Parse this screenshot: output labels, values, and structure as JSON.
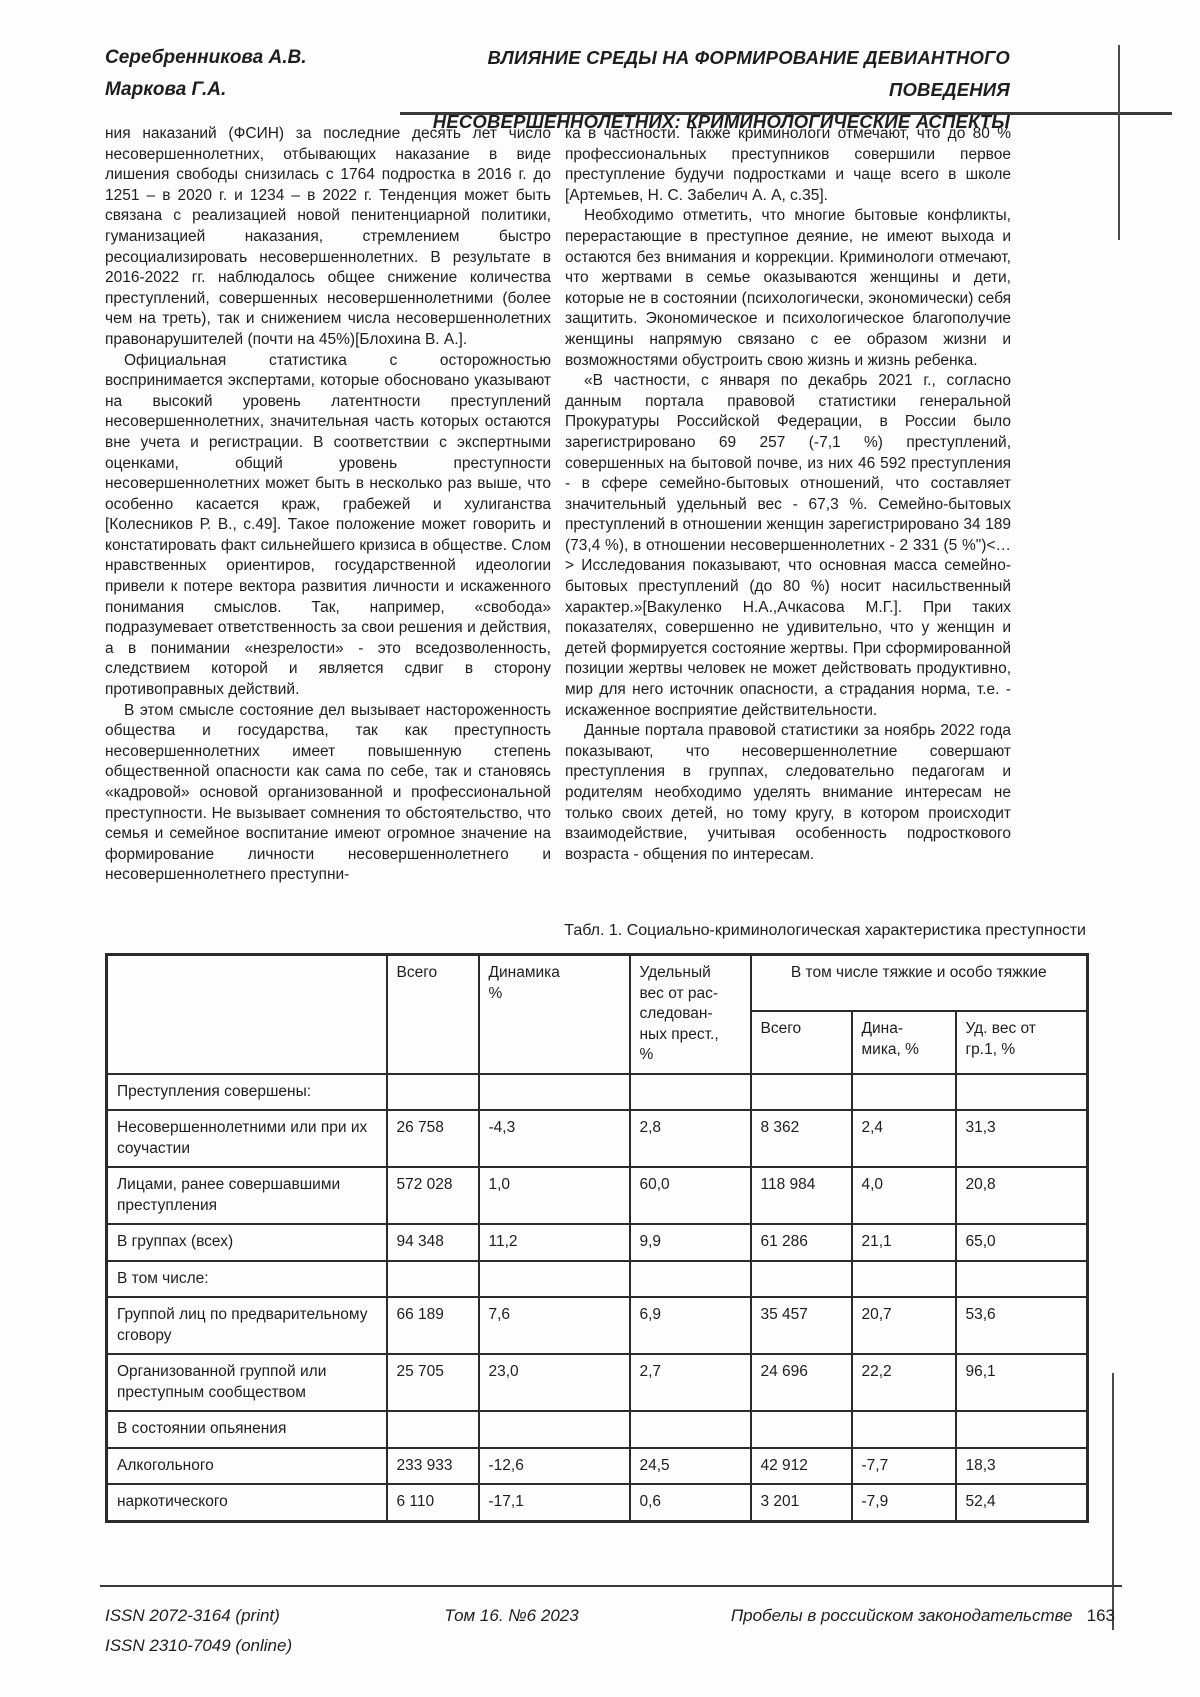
{
  "header": {
    "authors": [
      "Серебренникова А.В.",
      "Маркова Г.А."
    ],
    "title_line1": "ВЛИЯНИЕ СРЕДЫ НА ФОРМИРОВАНИЕ ДЕВИАНТНОГО ПОВЕДЕНИЯ",
    "title_line2": "НЕСОВЕРШЕННОЛЕТНИХ: КРИМИНОЛОГИЧЕСКИЕ АСПЕКТЫ"
  },
  "body": {
    "left_column": [
      {
        "text": "ния наказаний (ФСИН) за последние десять лет число несовершеннолетних, отбывающих наказание в виде лишения свободы снизилась с 1764 подростка в 2016 г. до 1251 – в 2020 г. и 1234 – в 2022 г. Тенденция может быть связана с реализацией новой пенитенциарной политики, гуманизацией наказания, стремлением быстро ресоциализировать несовершеннолетних. В результате в 2016-2022 гг. наблюдалось общее снижение количества преступлений, совершенных несовершеннолетними (более чем на треть), так и снижением числа несовершеннолетних правонарушителей (почти на 45%)[Блохина В. А.]."
      },
      {
        "text": "Официальная статистика с осторожностью воспринимается экспертами, которые обосновано указывают на высокий уровень латентности преступлений несовершеннолетних, значительная часть которых остаются вне учета и регистрации. В соответствии с экспертными оценками, общий уровень преступности несовершеннолетних может быть в несколько раз выше, что особенно касается краж, грабежей и хулиганства [Колесников Р. В., с.49]. Такое положение может говорить и констатировать факт сильнейшего кризиса в обществе. Слом нравственных ориентиров, государственной идеологии привели к потере вектора развития личности и искаженного понимания смыслов. Так, например, «свобода» подразумевает ответственность за свои решения и действия, а в понимании «незрелости» - это вседозволенность, следствием которой и является сдвиг в сторону противоправных действий."
      },
      {
        "text": "В этом смысле состояние дел вызывает настороженность общества и государства, так как преступность несовершеннолетних имеет повышенную степень общественной опасности как сама по себе, так и становясь «кадровой» основой организованной и профессиональной преступности. Не вызывает сомнения то обстоятельство, что семья и семейное воспитание имеют огромное значение на формирование личности несовершеннолетнего и несовершеннолетнего преступни-"
      }
    ],
    "right_column": [
      {
        "text": "ка в частности. Также криминологи отмечают, что до 80 % профессиональных преступников совершили первое преступление будучи подростками и чаще всего в школе [Артемьев, Н. С. Забелич А. А, с.35]."
      },
      {
        "text": "Необходимо отметить, что многие бытовые конфликты, перерастающие в преступное деяние, не имеют выхода и остаются без внимания и коррекции. Криминологи отмечают, что жертвами в семье оказываются женщины и дети, которые не в состоянии (психологически, экономически) себя защитить. Экономическое и психологическое благополучие женщины напрямую связано с ее образом жизни и возможностями обустроить свою жизнь и жизнь ребенка."
      },
      {
        "text": "«В частности, с января по декабрь 2021 г., согласно данным портала правовой статистики генеральной Прокуратуры Российской Федерации, в России было зарегистрировано 69 257 (-7,1 %) преступлений, совершенных на бытовой почве, из них 46 592 преступления - в сфере семейно-бытовых отношений, что составляет значительный удельный вес - 67,3 %. Семейно-бытовых преступлений в отношении женщин зарегистрировано 34 189 (73,4 %), в отношении несовершеннолетних - 2 331 (5 %\")<…> Исследования показывают, что основная масса семейно-бытовых преступлений (до 80 %) носит насильственный характер.»[Вакуленко Н.А.,Ачкасова М.Г.]. При таких показателях, совершенно не удивительно, что у женщин и детей формируется состояние жертвы. При сформированной позиции жертвы человек не может действовать продуктивно, мир для него источник опасности, а страдания норма, т.е. - искаженное восприятие действительности."
      },
      {
        "text": "Данные портала правовой статистики за ноябрь 2022 года показывают, что несовершеннолетние совершают преступления в группах, следовательно педагогам и родителям необходимо уделять внимание интересам не только своих детей, но тому кругу, в котором происходит взаимодействие, учитывая особенность подросткового возраста - общения по интересам."
      }
    ]
  },
  "table": {
    "caption": "Табл. 1. Социально-криминологическая характеристика преступности",
    "col_headers": {
      "total": "Всего",
      "dynamics": "Динамика\n%",
      "share": "Удельный\nвес от рас-\nследован-\nных прест.,\n%",
      "group": "В том числе тяжкие и особо тяжкие",
      "g_total": "Всего",
      "g_dynamics": "Дина-\nмика, %",
      "g_share": "Уд. вес от\nгр.1, %"
    },
    "rows": [
      {
        "section": true,
        "label": "Преступления совершены:",
        "values": [
          "",
          "",
          "",
          "",
          "",
          ""
        ]
      },
      {
        "section": false,
        "label": "Несовершеннолетними или при их соучастии",
        "values": [
          "26 758",
          "-4,3",
          "2,8",
          "8 362",
          "2,4",
          "31,3"
        ]
      },
      {
        "section": false,
        "label": "Лицами, ранее совершавшими преступления",
        "values": [
          "572 028",
          "1,0",
          "60,0",
          "118 984",
          "4,0",
          "20,8"
        ]
      },
      {
        "section": false,
        "label": "В группах (всех)",
        "values": [
          "94 348",
          "11,2",
          "9,9",
          "61 286",
          "21,1",
          "65,0"
        ]
      },
      {
        "section": true,
        "label": "В том числе:",
        "values": [
          "",
          "",
          "",
          "",
          "",
          ""
        ]
      },
      {
        "section": false,
        "label": "Группой лиц по предварительному сговору",
        "values": [
          "66 189",
          "7,6",
          "6,9",
          "35 457",
          "20,7",
          "53,6"
        ]
      },
      {
        "section": false,
        "label": "Организованной группой или преступным сообществом",
        "values": [
          "25 705",
          "23,0",
          "2,7",
          "24 696",
          "22,2",
          "96,1"
        ]
      },
      {
        "section": true,
        "label": "В состоянии опьянения",
        "values": [
          "",
          "",
          "",
          "",
          "",
          ""
        ]
      },
      {
        "section": false,
        "label": "Алкогольного",
        "values": [
          "233 933",
          "-12,6",
          "24,5",
          "42 912",
          "-7,7",
          "18,3"
        ]
      },
      {
        "section": false,
        "label": "наркотического",
        "values": [
          "6 110",
          "-17,1",
          "0,6",
          "3 201",
          "-7,9",
          "52,4"
        ]
      }
    ]
  },
  "footer": {
    "issn_print": "ISSN 2072-3164 (print)",
    "issn_online": "ISSN 2310-7049 (online)",
    "volume": "Том 16. №6 2023",
    "journal": "Пробелы в российском законодательстве",
    "page_number": "163"
  }
}
